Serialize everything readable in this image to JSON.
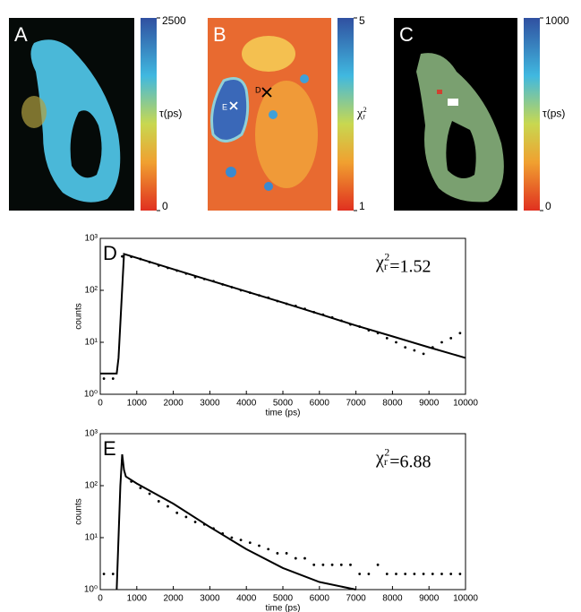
{
  "panels": [
    {
      "label": "A",
      "colorbar": {
        "label": "τ(ps)",
        "lim": [
          0,
          2500
        ],
        "ticks": [
          0,
          2500
        ]
      }
    },
    {
      "label": "B",
      "colorbar": {
        "label": {
          "symbol": "χ",
          "sub": "r",
          "sup": "2"
        },
        "lim": [
          1,
          5
        ],
        "ticks": [
          1,
          5
        ]
      },
      "markers": [
        "D",
        "E"
      ]
    },
    {
      "label": "C",
      "colorbar": {
        "label": "τ(ps)",
        "lim": [
          0,
          1000
        ],
        "ticks": [
          0,
          1000
        ]
      }
    }
  ],
  "chart_data": [
    {
      "type": "scatter",
      "panel_label": "D",
      "annotation": {
        "symbol": "χ",
        "sub": "r",
        "sup": "2",
        "text": "=1.52"
      },
      "x_label": "time (ps)",
      "y_label": "counts",
      "log_y": true,
      "xlim": [
        0,
        10000
      ],
      "ylim": [
        1,
        1000
      ],
      "xticks": [
        0,
        1000,
        2000,
        3000,
        4000,
        5000,
        6000,
        7000,
        8000,
        9000,
        10000
      ],
      "yticks": [
        {
          "value": 1,
          "label": "10⁰"
        },
        {
          "value": 10,
          "label": "10¹"
        },
        {
          "value": 100,
          "label": "10²"
        },
        {
          "value": 1000,
          "label": "10³"
        }
      ],
      "points": {
        "color": "#000000",
        "x": [
          100,
          350,
          600,
          850,
          1100,
          1350,
          1600,
          1850,
          2100,
          2350,
          2600,
          2850,
          3100,
          3350,
          3600,
          3850,
          4100,
          4350,
          4600,
          4850,
          5100,
          5350,
          5600,
          5850,
          6100,
          6350,
          6600,
          6850,
          7100,
          7350,
          7600,
          7850,
          8100,
          8350,
          8600,
          8850,
          9100,
          9350,
          9600,
          9850
        ],
        "values": [
          2,
          2,
          450,
          440,
          400,
          350,
          300,
          270,
          240,
          210,
          180,
          165,
          150,
          130,
          115,
          100,
          90,
          80,
          72,
          62,
          55,
          50,
          44,
          38,
          34,
          30,
          26,
          22,
          20,
          17,
          15,
          12,
          10,
          8,
          7,
          6,
          8,
          10,
          12,
          15
        ]
      },
      "fit": {
        "color": "#000000",
        "x": [
          0,
          450,
          500,
          650,
          1000,
          2000,
          3000,
          4000,
          5000,
          6000,
          7000,
          8000,
          9000,
          10000
        ],
        "values": [
          2.5,
          2.5,
          5,
          500,
          420,
          255,
          155,
          95,
          58,
          35,
          21,
          13,
          8,
          5
        ]
      }
    },
    {
      "type": "scatter",
      "panel_label": "E",
      "annotation": {
        "symbol": "χ",
        "sub": "r",
        "sup": "2",
        "text": "=6.88"
      },
      "x_label": "time (ps)",
      "y_label": "counts",
      "log_y": true,
      "xlim": [
        0,
        10000
      ],
      "ylim": [
        1,
        1000
      ],
      "xticks": [
        0,
        1000,
        2000,
        3000,
        4000,
        5000,
        6000,
        7000,
        8000,
        9000,
        10000
      ],
      "yticks": [
        {
          "value": 1,
          "label": "10⁰"
        },
        {
          "value": 10,
          "label": "10¹"
        },
        {
          "value": 100,
          "label": "10²"
        },
        {
          "value": 1000,
          "label": "10³"
        }
      ],
      "points": {
        "color": "#000000",
        "x": [
          100,
          350,
          600,
          850,
          1100,
          1350,
          1600,
          1850,
          2100,
          2350,
          2600,
          2850,
          3100,
          3350,
          3600,
          3850,
          4100,
          4350,
          4600,
          4850,
          5100,
          5350,
          5600,
          5850,
          6100,
          6350,
          6600,
          6850,
          7100,
          7350,
          7600,
          7850,
          8100,
          8350,
          8600,
          8850,
          9100,
          9350,
          9600,
          9850
        ],
        "values": [
          2,
          2,
          300,
          120,
          90,
          70,
          50,
          40,
          30,
          25,
          20,
          18,
          15,
          12,
          10,
          9,
          8,
          7,
          6,
          5,
          5,
          4,
          4,
          3,
          3,
          3,
          3,
          3,
          2,
          2,
          3,
          2,
          2,
          2,
          2,
          2,
          2,
          2,
          2,
          2
        ]
      },
      "fit": {
        "color": "#000000",
        "x": [
          450,
          550,
          600,
          650,
          700,
          1000,
          2000,
          3000,
          4000,
          5000,
          6000,
          7000
        ],
        "values": [
          1,
          100,
          400,
          200,
          150,
          110,
          45,
          16,
          6,
          2.6,
          1.4,
          1
        ]
      }
    }
  ]
}
